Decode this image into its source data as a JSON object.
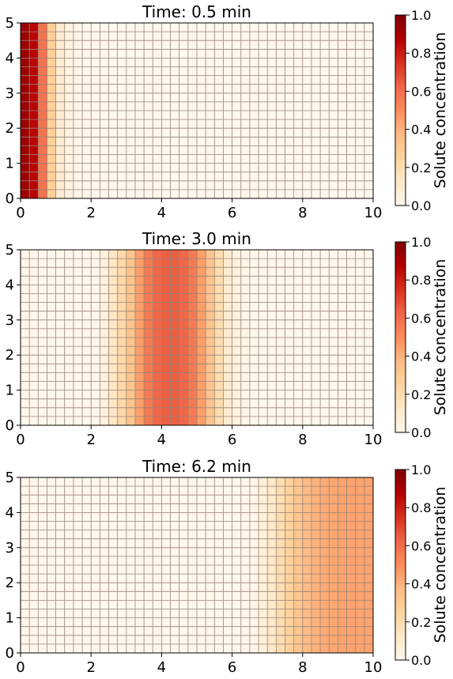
{
  "chart_data": [
    {
      "type": "heatmap",
      "title": "Time: 0.5 min",
      "xlim": [
        0,
        10
      ],
      "ylim": [
        0,
        5
      ],
      "xticks": [
        "0",
        "2",
        "4",
        "6",
        "8",
        "10"
      ],
      "yticks": [
        "0",
        "1",
        "2",
        "3",
        "4",
        "5"
      ],
      "grid": true,
      "nx": 40,
      "ny": 20,
      "column_values": [
        0.93,
        0.86,
        0.58,
        0.27,
        0.09,
        0.03,
        0.01,
        0.005,
        0,
        0,
        0,
        0,
        0,
        0,
        0,
        0,
        0,
        0,
        0,
        0,
        0,
        0,
        0,
        0,
        0,
        0,
        0,
        0,
        0,
        0,
        0,
        0,
        0,
        0,
        0,
        0,
        0,
        0,
        0,
        0
      ],
      "colorbar": {
        "label": "Solute concentration",
        "range": [
          0,
          1
        ],
        "ticks": [
          "0.0",
          "0.2",
          "0.4",
          "0.6",
          "0.8",
          "1.0"
        ]
      }
    },
    {
      "type": "heatmap",
      "title": "Time: 3.0 min",
      "xlim": [
        0,
        10
      ],
      "ylim": [
        0,
        5
      ],
      "xticks": [
        "0",
        "2",
        "4",
        "6",
        "8",
        "10"
      ],
      "yticks": [
        "0",
        "1",
        "2",
        "3",
        "4",
        "5"
      ],
      "grid": true,
      "nx": 40,
      "ny": 20,
      "column_values": [
        0,
        0,
        0,
        0,
        0,
        0,
        0,
        0,
        0.01,
        0.05,
        0.13,
        0.22,
        0.33,
        0.45,
        0.56,
        0.62,
        0.64,
        0.64,
        0.62,
        0.56,
        0.45,
        0.33,
        0.2,
        0.1,
        0.04,
        0.01,
        0,
        0,
        0,
        0,
        0,
        0,
        0,
        0,
        0,
        0,
        0,
        0,
        0,
        0
      ],
      "colorbar": {
        "label": "Solute concentration",
        "range": [
          0,
          1
        ],
        "ticks": [
          "0.0",
          "0.2",
          "0.4",
          "0.6",
          "0.8",
          "1.0"
        ]
      }
    },
    {
      "type": "heatmap",
      "title": "Time: 6.2 min",
      "xlim": [
        0,
        10
      ],
      "ylim": [
        0,
        5
      ],
      "xticks": [
        "0",
        "2",
        "4",
        "6",
        "8",
        "10"
      ],
      "yticks": [
        "0",
        "1",
        "2",
        "3",
        "4",
        "5"
      ],
      "grid": true,
      "nx": 40,
      "ny": 20,
      "column_values": [
        0,
        0,
        0,
        0,
        0,
        0,
        0,
        0,
        0,
        0,
        0,
        0,
        0,
        0,
        0,
        0,
        0,
        0,
        0,
        0,
        0,
        0,
        0,
        0,
        0,
        0,
        0.02,
        0.06,
        0.12,
        0.19,
        0.26,
        0.32,
        0.37,
        0.4,
        0.42,
        0.43,
        0.44,
        0.44,
        0.44,
        0.44
      ],
      "colorbar": {
        "label": "Solute concentration",
        "range": [
          0,
          1
        ],
        "ticks": [
          "0.0",
          "0.2",
          "0.4",
          "0.6",
          "0.8",
          "1.0"
        ]
      }
    }
  ]
}
